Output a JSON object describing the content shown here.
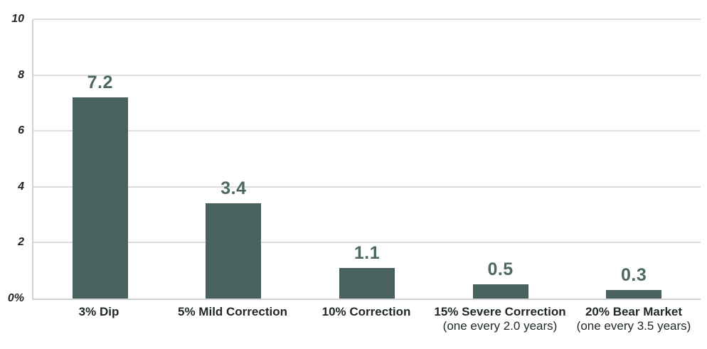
{
  "chart_data": {
    "type": "bar",
    "title": "",
    "xlabel": "",
    "ylabel": "",
    "grid": true,
    "legend": false,
    "ylim": [
      0,
      10
    ],
    "categories": [
      "3% Dip",
      "5% Mild Correction",
      "10% Correction",
      "15% Severe Correction",
      "20% Bear Market"
    ],
    "category_sublabels": [
      "",
      "",
      "",
      "(one every 2.0 years)",
      "(one every 3.5 years)"
    ],
    "values": [
      7.2,
      3.4,
      1.1,
      0.5,
      0.3
    ],
    "value_labels": [
      "7.2",
      "3.4",
      "1.1",
      "0.5",
      "0.3"
    ],
    "y_ticks": [
      {
        "value": 0,
        "label": "0%"
      },
      {
        "value": 2,
        "label": "2"
      },
      {
        "value": 4,
        "label": "4"
      },
      {
        "value": 6,
        "label": "6"
      },
      {
        "value": 8,
        "label": "8"
      },
      {
        "value": 10,
        "label": "10"
      }
    ],
    "colors": {
      "bar": "#49615F",
      "value_label": "#4D6765",
      "axis_tick": "#1E2422",
      "category_label": "#212927",
      "gridline": "#DDDDDD",
      "axis_line": "#D0D3D3",
      "background": "#FFFFFF"
    }
  }
}
